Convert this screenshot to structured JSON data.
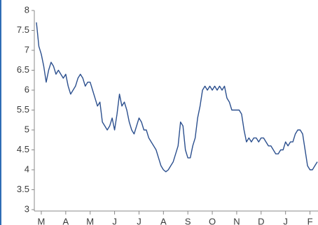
{
  "chart_data": {
    "type": "line",
    "categories": [
      null,
      null,
      "M",
      null,
      null,
      null,
      null,
      null,
      null,
      null,
      null,
      null,
      "A",
      null,
      null,
      null,
      null,
      null,
      null,
      null,
      null,
      null,
      "M",
      null,
      null,
      null,
      null,
      null,
      null,
      null,
      null,
      null,
      "J",
      null,
      null,
      null,
      null,
      null,
      null,
      null,
      null,
      null,
      "J",
      null,
      null,
      null,
      null,
      null,
      null,
      null,
      null,
      null,
      "A",
      null,
      null,
      null,
      null,
      null,
      null,
      null,
      null,
      null,
      "S",
      null,
      null,
      null,
      null,
      null,
      null,
      null,
      null,
      null,
      "O",
      null,
      null,
      null,
      null,
      null,
      null,
      null,
      null,
      null,
      "N",
      null,
      null,
      null,
      null,
      null,
      null,
      null,
      null,
      null,
      "D",
      null,
      null,
      null,
      null,
      null,
      null,
      null,
      null,
      null,
      "J",
      null,
      null,
      null,
      null,
      null,
      null,
      null,
      null,
      null,
      "F",
      null,
      null,
      null
    ],
    "values": [
      7.7,
      7.1,
      6.9,
      6.6,
      6.2,
      6.5,
      6.7,
      6.6,
      6.4,
      6.5,
      6.4,
      6.3,
      6.4,
      6.1,
      5.9,
      6.0,
      6.1,
      6.3,
      6.4,
      6.3,
      6.1,
      6.2,
      6.2,
      6.0,
      5.8,
      5.6,
      5.7,
      5.2,
      5.1,
      5.0,
      5.1,
      5.3,
      5.0,
      5.4,
      5.9,
      5.6,
      5.7,
      5.5,
      5.2,
      5.0,
      4.9,
      5.1,
      5.3,
      5.2,
      5.0,
      5.0,
      4.8,
      4.7,
      4.6,
      4.5,
      4.3,
      4.1,
      4.0,
      3.95,
      4.0,
      4.1,
      4.2,
      4.4,
      4.6,
      5.2,
      5.1,
      4.5,
      4.3,
      4.3,
      4.6,
      4.8,
      5.3,
      5.6,
      6.0,
      6.1,
      6.0,
      6.1,
      6.0,
      6.1,
      6.0,
      6.1,
      6.0,
      6.1,
      5.8,
      5.7,
      5.5,
      5.5,
      5.5,
      5.5,
      5.4,
      5.0,
      4.7,
      4.8,
      4.7,
      4.8,
      4.8,
      4.7,
      4.8,
      4.8,
      4.7,
      4.6,
      4.6,
      4.5,
      4.4,
      4.4,
      4.5,
      4.5,
      4.7,
      4.6,
      4.7,
      4.7,
      4.9,
      5.0,
      5.0,
      4.9,
      4.5,
      4.1,
      4.0,
      4.0,
      4.1,
      4.2
    ],
    "color": "#2b4f8e",
    "ylim": [
      3,
      8
    ],
    "yticks": [
      3,
      3.5,
      4,
      4.5,
      5,
      5.5,
      6,
      6.5,
      7,
      7.5,
      8
    ],
    "grid": false
  }
}
